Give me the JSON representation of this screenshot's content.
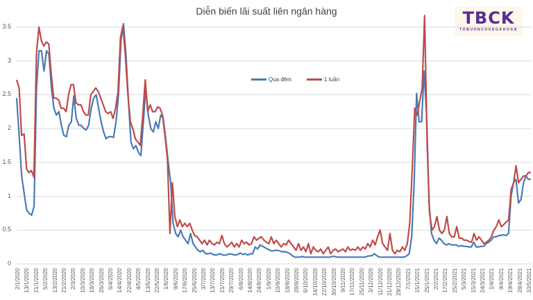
{
  "chart_data": {
    "type": "line",
    "title": "Diễn biến lãi suất liên ngân hàng",
    "xlabel": "",
    "ylabel": "",
    "ylim": [
      0,
      3.5
    ],
    "yticks": [
      "3.5",
      "3",
      "2.5",
      "2",
      "1.5",
      "1",
      "0.5",
      "0"
    ],
    "grid": true,
    "legend_position": "inside-top-center",
    "x_tick_labels": [
      "2/1/2020",
      "13/1/2020",
      "21/1/2020",
      "5/2/2020",
      "13/2/2020",
      "21/2/2020",
      "2/3/2020",
      "10/3/2020",
      "18/3/2020",
      "26/3/2020",
      "6/4/2020",
      "14/4/2020",
      "22/4/2020",
      "4/5/2020",
      "13/5/2020",
      "22/5/2020",
      "1/6/2020",
      "9/6/2020",
      "17/6/2020",
      "25/6/2020",
      "3/7/2020",
      "13/7/2020",
      "21/7/2020",
      "29/7/2020",
      "6/8/2020",
      "14/8/2020",
      "24/8/2020",
      "1/9/2020",
      "10/9/2020",
      "18/9/2020",
      "28/9/2020",
      "6/10/2020",
      "14/10/2020",
      "22/10/2020",
      "30/10/2020",
      "9/11/2020",
      "17/11/2020",
      "25/11/2020",
      "3/12/2020",
      "11/12/2020",
      "21/12/2020",
      "29/12/2020",
      "7/1/2021",
      "15/1/2021",
      "25/1/2021",
      "2/2/2021",
      "17/2/2021",
      "25/2/2021",
      "5/3/2021",
      "15/3/2021",
      "24/3/2021",
      "1/4/2021",
      "9/4/2021",
      "19/4/2021",
      "28/4/2021",
      "10/5/2021"
    ],
    "series": [
      {
        "name": "Qua đêm",
        "color": "#4a7ab5",
        "values": [
          2.45,
          1.9,
          1.3,
          1.05,
          0.8,
          0.75,
          0.72,
          0.85,
          2.6,
          3.15,
          3.15,
          2.85,
          3.15,
          3.1,
          2.6,
          2.3,
          2.2,
          2.25,
          2.05,
          1.9,
          1.88,
          2.05,
          2.1,
          2.48,
          2.15,
          2.05,
          2.05,
          2.0,
          1.98,
          2.05,
          2.3,
          2.45,
          2.5,
          2.3,
          2.1,
          1.95,
          1.85,
          1.88,
          1.88,
          1.87,
          2.1,
          2.5,
          3.3,
          3.55,
          3.1,
          2.4,
          1.8,
          1.7,
          1.75,
          1.65,
          1.6,
          2.1,
          2.6,
          2.2,
          2.0,
          1.95,
          2.1,
          2.0,
          2.2,
          2.15,
          1.85,
          1.5,
          1.2,
          0.6,
          0.45,
          0.4,
          0.5,
          0.4,
          0.35,
          0.3,
          0.45,
          0.3,
          0.25,
          0.2,
          0.18,
          0.2,
          0.15,
          0.15,
          0.16,
          0.14,
          0.13,
          0.14,
          0.15,
          0.13,
          0.13,
          0.14,
          0.15,
          0.14,
          0.13,
          0.14,
          0.16,
          0.14,
          0.15,
          0.13,
          0.15,
          0.15,
          0.25,
          0.22,
          0.28,
          0.26,
          0.24,
          0.22,
          0.2,
          0.19,
          0.2,
          0.2,
          0.19,
          0.18,
          0.18,
          0.17,
          0.15,
          0.12,
          0.1,
          0.1,
          0.1,
          0.11,
          0.1,
          0.1,
          0.1,
          0.1,
          0.1,
          0.1,
          0.1,
          0.1,
          0.1,
          0.1,
          0.1,
          0.11,
          0.11,
          0.1,
          0.1,
          0.1,
          0.1,
          0.1,
          0.1,
          0.1,
          0.1,
          0.1,
          0.1,
          0.1,
          0.1,
          0.11,
          0.12,
          0.12,
          0.15,
          0.12,
          0.1,
          0.1,
          0.1,
          0.1,
          0.1,
          0.1,
          0.1,
          0.1,
          0.1,
          0.1,
          0.1,
          0.12,
          0.15,
          0.4,
          1.2,
          2.52,
          2.1,
          2.1,
          2.85,
          2.2,
          0.9,
          0.45,
          0.35,
          0.3,
          0.38,
          0.35,
          0.3,
          0.28,
          0.3,
          0.28,
          0.28,
          0.28,
          0.26,
          0.27,
          0.26,
          0.26,
          0.25,
          0.25,
          0.32,
          0.25,
          0.25,
          0.26,
          0.26,
          0.3,
          0.32,
          0.35,
          0.4,
          0.4,
          0.42,
          0.42,
          0.43,
          0.42,
          0.45,
          1.0,
          1.2,
          1.25,
          0.9,
          0.95,
          1.2,
          1.3,
          1.25,
          1.25
        ]
      },
      {
        "name": "1 tuần",
        "color": "#be4b48",
        "values": [
          2.72,
          2.6,
          1.9,
          1.92,
          1.4,
          1.35,
          1.38,
          1.28,
          3.1,
          3.5,
          3.3,
          3.22,
          3.28,
          3.25,
          2.8,
          2.45,
          2.45,
          2.42,
          2.3,
          2.3,
          2.25,
          2.5,
          2.65,
          2.65,
          2.38,
          2.35,
          2.35,
          2.25,
          2.2,
          2.2,
          2.5,
          2.55,
          2.6,
          2.55,
          2.45,
          2.35,
          2.25,
          2.22,
          2.25,
          2.15,
          2.3,
          2.55,
          3.35,
          3.52,
          3.05,
          2.5,
          2.1,
          2.0,
          1.85,
          1.8,
          1.75,
          2.2,
          2.72,
          2.25,
          2.35,
          2.25,
          2.25,
          2.32,
          2.3,
          2.2,
          1.9,
          1.55,
          0.45,
          1.2,
          0.7,
          0.55,
          0.65,
          0.55,
          0.6,
          0.55,
          0.6,
          0.5,
          0.42,
          0.4,
          0.35,
          0.3,
          0.35,
          0.28,
          0.35,
          0.3,
          0.28,
          0.32,
          0.3,
          0.42,
          0.3,
          0.25,
          0.28,
          0.32,
          0.25,
          0.3,
          0.25,
          0.35,
          0.3,
          0.32,
          0.28,
          0.3,
          0.4,
          0.35,
          0.38,
          0.4,
          0.35,
          0.32,
          0.3,
          0.4,
          0.3,
          0.35,
          0.3,
          0.25,
          0.3,
          0.28,
          0.35,
          0.3,
          0.25,
          0.2,
          0.3,
          0.2,
          0.25,
          0.18,
          0.3,
          0.15,
          0.25,
          0.2,
          0.18,
          0.22,
          0.15,
          0.2,
          0.25,
          0.15,
          0.2,
          0.22,
          0.18,
          0.2,
          0.22,
          0.18,
          0.25,
          0.2,
          0.22,
          0.2,
          0.25,
          0.2,
          0.25,
          0.22,
          0.3,
          0.25,
          0.35,
          0.28,
          0.4,
          0.5,
          0.3,
          0.25,
          0.2,
          0.45,
          0.2,
          0.15,
          0.2,
          0.18,
          0.25,
          0.2,
          0.3,
          0.6,
          1.4,
          2.3,
          2.2,
          2.4,
          2.6,
          3.67,
          1.8,
          0.75,
          0.5,
          0.55,
          0.7,
          0.5,
          0.45,
          0.5,
          0.7,
          0.45,
          0.4,
          0.4,
          0.55,
          0.38,
          0.38,
          0.35,
          0.35,
          0.33,
          0.32,
          0.45,
          0.35,
          0.4,
          0.35,
          0.3,
          0.32,
          0.35,
          0.4,
          0.5,
          0.55,
          0.65,
          0.55,
          0.58,
          0.62,
          0.65,
          1.1,
          1.2,
          1.45,
          1.2,
          1.25,
          1.3,
          1.3,
          1.35,
          1.35
        ]
      }
    ]
  },
  "title": "Diễn biến lãi suất liên ngân hàng",
  "logo": {
    "text": "TBCK",
    "subtext": "TOBUONCHUNGKHOAN"
  },
  "legend": [
    {
      "label": "Qua đêm",
      "color": "#4a7ab5"
    },
    {
      "label": "1 tuần",
      "color": "#be4b48"
    }
  ]
}
